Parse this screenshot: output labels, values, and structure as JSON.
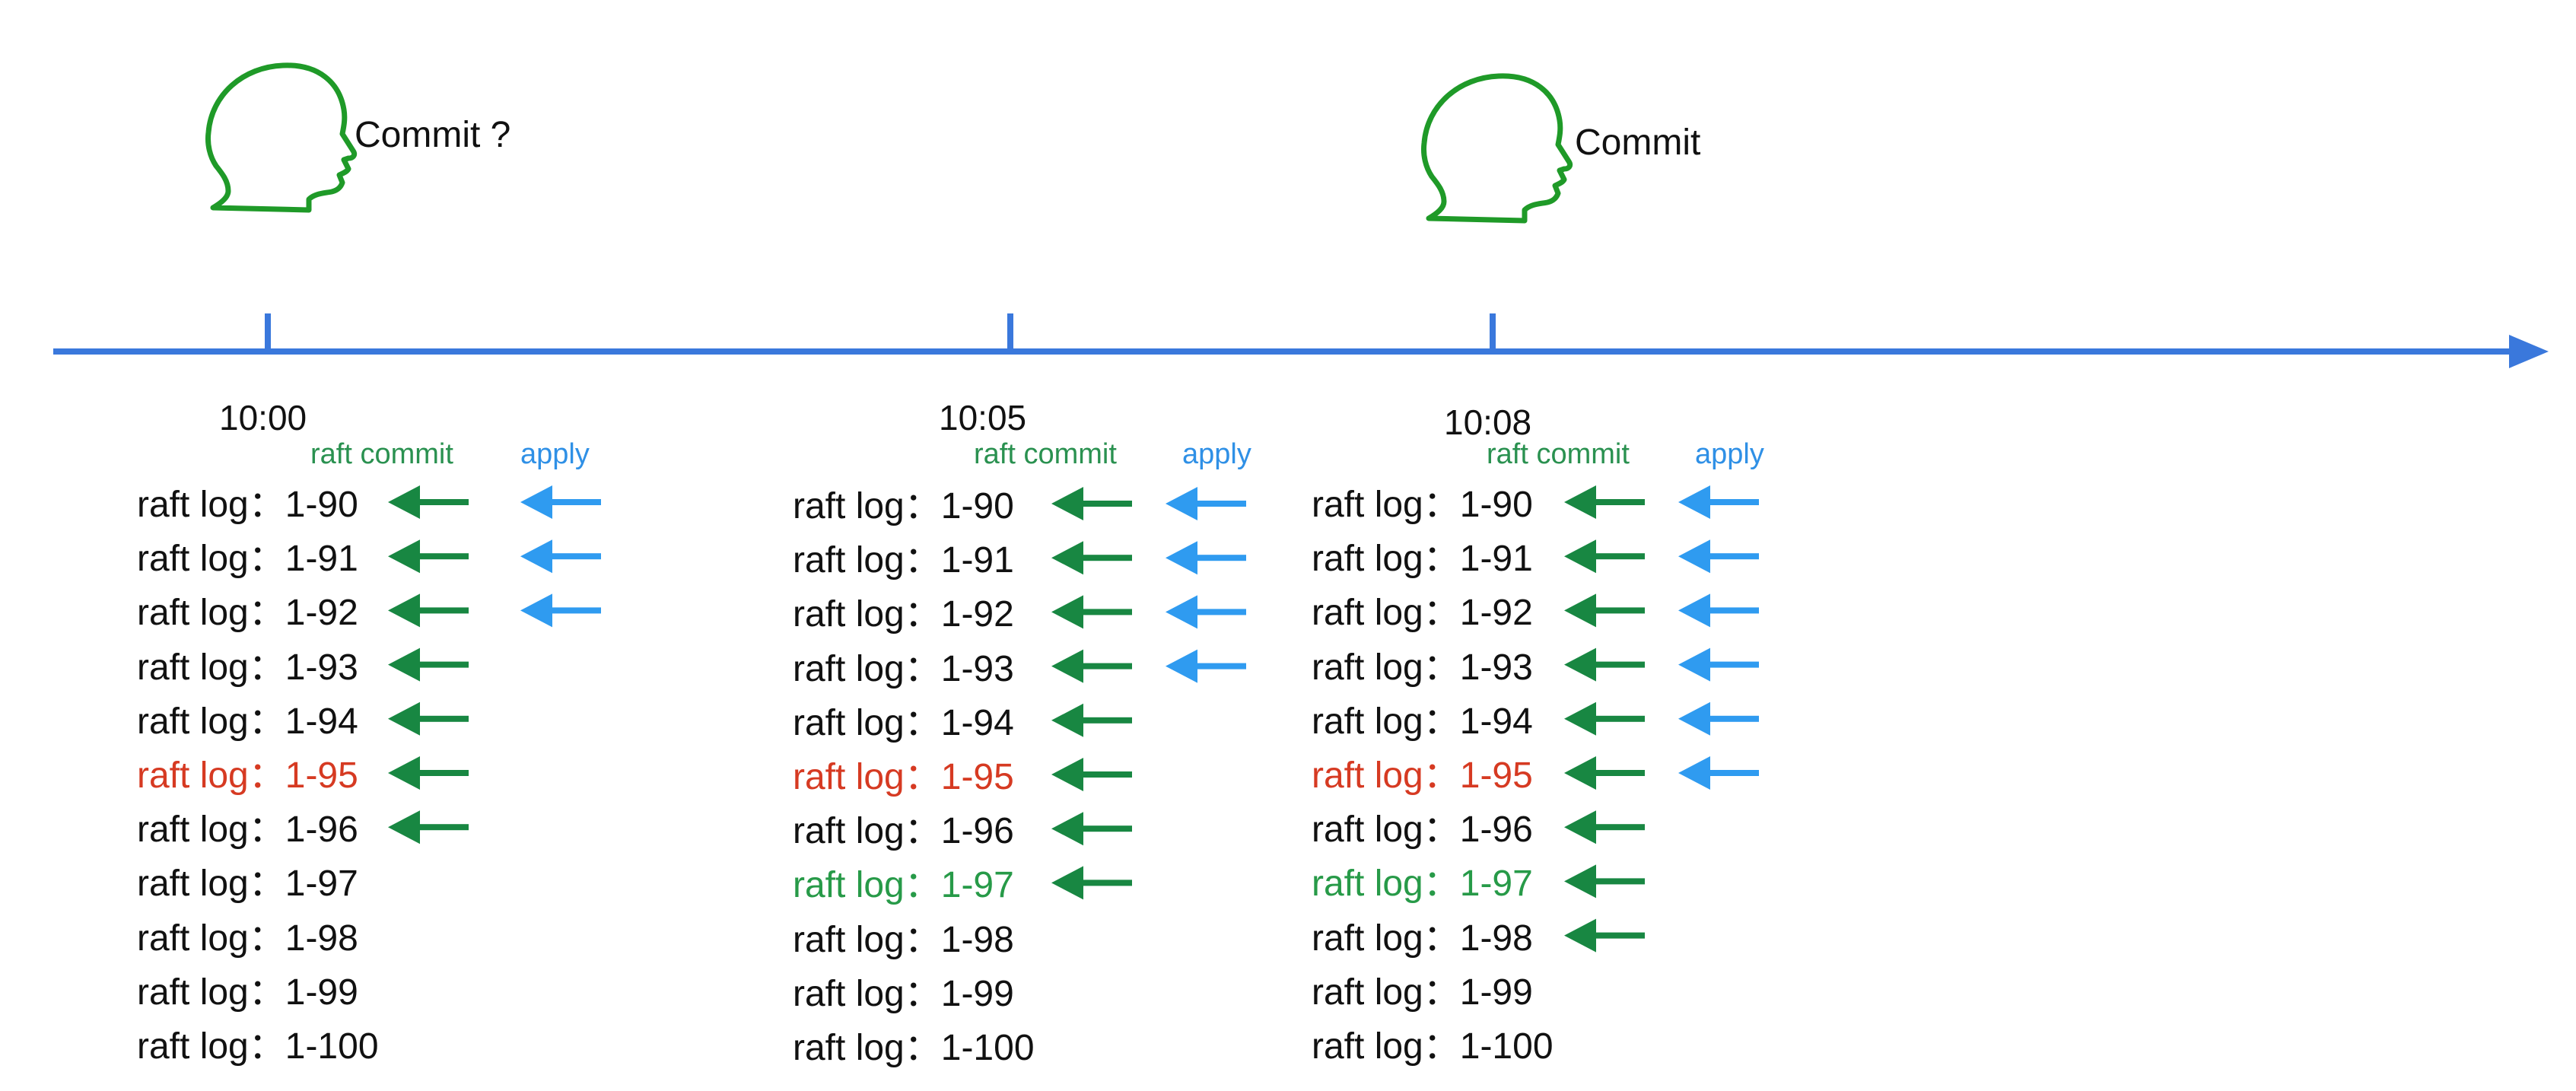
{
  "colors": {
    "timeline": "#3a78dc",
    "person": "#1f9a28",
    "commit_arrow": "#188742",
    "apply_arrow": "#2f9bf0",
    "log_default": "#111111",
    "log_red": "#d63a22",
    "log_green": "#279a48",
    "header_commit": "#2a9150",
    "header_apply": "#2f90e6"
  },
  "persons": [
    {
      "icon": "head-profile-icon",
      "label": "Commit ?"
    },
    {
      "icon": "head-profile-icon",
      "label": "Commit"
    }
  ],
  "timeline": {
    "ticks": [
      "10:00",
      "10:05",
      "10:08"
    ]
  },
  "columns": [
    {
      "time": "10:00",
      "header_commit": "raft commit",
      "header_apply": "apply",
      "entries": [
        {
          "text": "raft log：1-90",
          "state": "default",
          "commit": true,
          "apply": true
        },
        {
          "text": "raft log：1-91",
          "state": "default",
          "commit": true,
          "apply": true
        },
        {
          "text": "raft log：1-92",
          "state": "default",
          "commit": true,
          "apply": true
        },
        {
          "text": "raft log：1-93",
          "state": "default",
          "commit": true,
          "apply": false
        },
        {
          "text": "raft log：1-94",
          "state": "default",
          "commit": true,
          "apply": false
        },
        {
          "text": "raft log：1-95",
          "state": "red",
          "commit": true,
          "apply": false
        },
        {
          "text": "raft log：1-96",
          "state": "default",
          "commit": true,
          "apply": false
        },
        {
          "text": "raft log：1-97",
          "state": "default",
          "commit": false,
          "apply": false
        },
        {
          "text": "raft log：1-98",
          "state": "default",
          "commit": false,
          "apply": false
        },
        {
          "text": "raft log：1-99",
          "state": "default",
          "commit": false,
          "apply": false
        },
        {
          "text": "raft log：1-100",
          "state": "default",
          "commit": false,
          "apply": false
        }
      ]
    },
    {
      "time": "10:05",
      "header_commit": "raft commit",
      "header_apply": "apply",
      "entries": [
        {
          "text": "raft log：1-90",
          "state": "default",
          "commit": true,
          "apply": true
        },
        {
          "text": "raft log：1-91",
          "state": "default",
          "commit": true,
          "apply": true
        },
        {
          "text": "raft log：1-92",
          "state": "default",
          "commit": true,
          "apply": true
        },
        {
          "text": "raft log：1-93",
          "state": "default",
          "commit": true,
          "apply": true
        },
        {
          "text": "raft log：1-94",
          "state": "default",
          "commit": true,
          "apply": false
        },
        {
          "text": "raft log：1-95",
          "state": "red",
          "commit": true,
          "apply": false
        },
        {
          "text": "raft log：1-96",
          "state": "default",
          "commit": true,
          "apply": false
        },
        {
          "text": "raft log：1-97",
          "state": "green",
          "commit": true,
          "apply": false
        },
        {
          "text": "raft log：1-98",
          "state": "default",
          "commit": false,
          "apply": false
        },
        {
          "text": "raft log：1-99",
          "state": "default",
          "commit": false,
          "apply": false
        },
        {
          "text": "raft log：1-100",
          "state": "default",
          "commit": false,
          "apply": false
        }
      ]
    },
    {
      "time": "10:08",
      "header_commit": "raft commit",
      "header_apply": "apply",
      "entries": [
        {
          "text": "raft log：1-90",
          "state": "default",
          "commit": true,
          "apply": true
        },
        {
          "text": "raft log：1-91",
          "state": "default",
          "commit": true,
          "apply": true
        },
        {
          "text": "raft log：1-92",
          "state": "default",
          "commit": true,
          "apply": true
        },
        {
          "text": "raft log：1-93",
          "state": "default",
          "commit": true,
          "apply": true
        },
        {
          "text": "raft log：1-94",
          "state": "default",
          "commit": true,
          "apply": true
        },
        {
          "text": "raft log：1-95",
          "state": "red",
          "commit": true,
          "apply": true
        },
        {
          "text": "raft log：1-96",
          "state": "default",
          "commit": true,
          "apply": false
        },
        {
          "text": "raft log：1-97",
          "state": "green",
          "commit": true,
          "apply": false
        },
        {
          "text": "raft log：1-98",
          "state": "default",
          "commit": true,
          "apply": false
        },
        {
          "text": "raft log：1-99",
          "state": "default",
          "commit": false,
          "apply": false
        },
        {
          "text": "raft log：1-100",
          "state": "default",
          "commit": false,
          "apply": false
        }
      ]
    }
  ]
}
